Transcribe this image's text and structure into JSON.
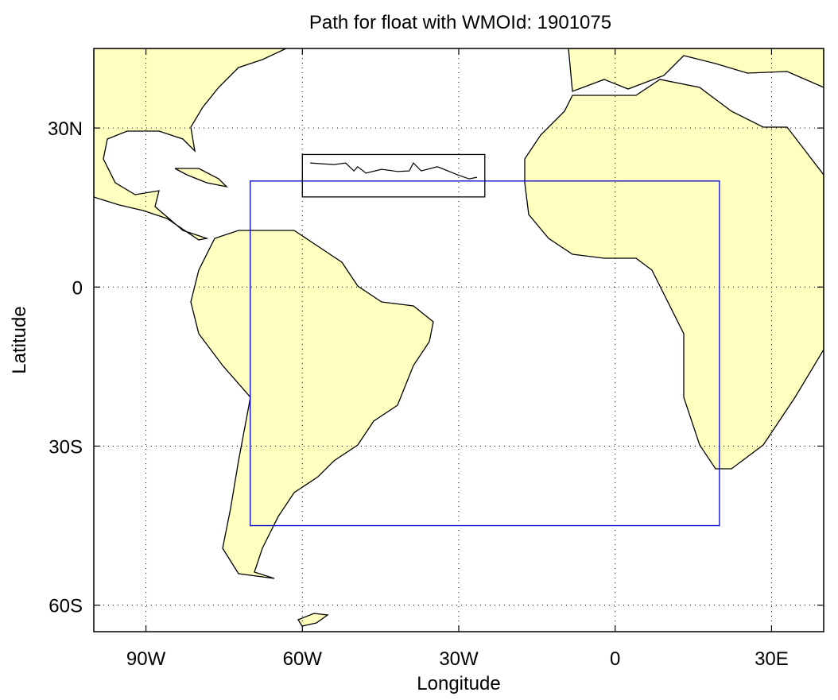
{
  "chart_data": {
    "type": "map",
    "title": "Path for float with WMOId: 1901075",
    "x_label": "Longitude",
    "y_label": "Latitude",
    "xlim": [
      -100,
      40
    ],
    "ylim": [
      -65,
      45
    ],
    "xticks": [
      {
        "value": -90,
        "label": "90W"
      },
      {
        "value": -60,
        "label": "60W"
      },
      {
        "value": -30,
        "label": "30W"
      },
      0,
      {
        "value": 30,
        "label": "30E"
      }
    ],
    "yticks": [
      {
        "value": -60,
        "label": "60S"
      },
      {
        "value": -30,
        "label": "30S"
      },
      0,
      {
        "value": 30,
        "label": "30N"
      }
    ],
    "grid": true,
    "land_color": "#ffffc0",
    "regions": [
      {
        "color": "#0000cc",
        "lon": [
          -70,
          20
        ],
        "lat": [
          -45,
          20
        ]
      },
      {
        "color": "#000000",
        "lon": [
          -60,
          -25
        ],
        "lat": [
          17,
          25
        ]
      }
    ],
    "track": {
      "color": "#000000",
      "lon": [
        -58.5,
        -53.9,
        -51.7,
        -50.1,
        -49.4,
        -47.8,
        -44.8,
        -41.7,
        -39.5,
        -38.7,
        -37.2,
        -34.1,
        -30.3,
        -28.0,
        -26.5
      ],
      "lat": [
        23.4,
        23.1,
        23.4,
        21.9,
        22.7,
        21.5,
        22.2,
        21.8,
        21.9,
        23.4,
        21.9,
        22.7,
        21.2,
        20.4,
        20.7
      ]
    }
  }
}
